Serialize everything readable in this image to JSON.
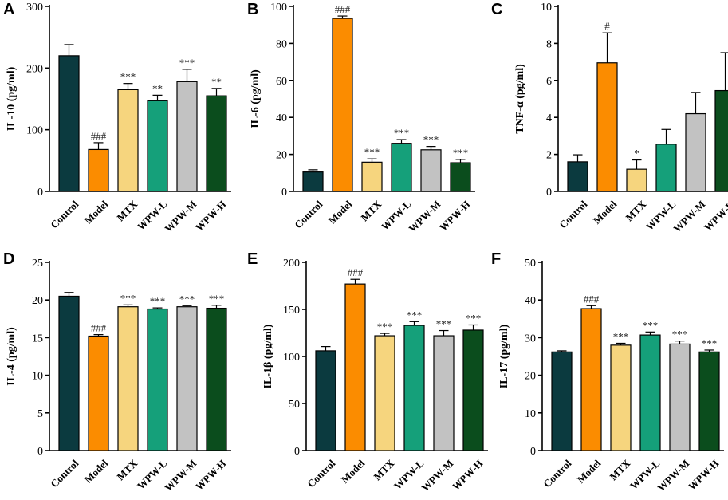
{
  "figure": {
    "colors": [
      "#0b3a3f",
      "#fb8c00",
      "#f6d57e",
      "#15a07a",
      "#c2c2c2",
      "#0b4d1d"
    ],
    "categories": [
      "Control",
      "Model",
      "MTX",
      "WPW-L",
      "WPW-M",
      "WPW-H"
    ]
  },
  "chart_data": [
    {
      "type": "bar",
      "panel": "A",
      "ylabel": "IL-10 (pg/ml)",
      "ylim": [
        0,
        300
      ],
      "yticks": [
        0,
        100,
        200,
        300
      ],
      "categories": [
        "Control",
        "Model",
        "MTX",
        "WPW-L",
        "WPW-M",
        "WPW-H"
      ],
      "values": [
        220,
        68,
        165,
        147,
        178,
        155
      ],
      "errors": [
        18,
        11,
        10,
        9,
        20,
        12
      ],
      "annotations": [
        "",
        "###",
        "***",
        "**",
        "***",
        "**"
      ]
    },
    {
      "type": "bar",
      "panel": "B",
      "ylabel": "IL-6 (pg/ml)",
      "ylim": [
        0,
        100
      ],
      "yticks": [
        0,
        20,
        40,
        60,
        80,
        100
      ],
      "categories": [
        "Control",
        "Model",
        "MTX",
        "WPW-L",
        "WPW-M",
        "WPW-H"
      ],
      "values": [
        10.5,
        93.5,
        15.8,
        26,
        22.5,
        15.5
      ],
      "errors": [
        1.2,
        1.3,
        1.8,
        2,
        1.8,
        1.8
      ],
      "annotations": [
        "",
        "###",
        "***",
        "***",
        "***",
        "***"
      ]
    },
    {
      "type": "bar",
      "panel": "C",
      "ylabel": "TNF-α (pg/ml)",
      "ylim": [
        0,
        10
      ],
      "yticks": [
        0,
        2,
        4,
        6,
        8,
        10
      ],
      "categories": [
        "Control",
        "Model",
        "MTX",
        "WPW-L",
        "WPW-M",
        "WPW-H"
      ],
      "values": [
        1.6,
        6.95,
        1.2,
        2.55,
        4.2,
        5.45
      ],
      "errors": [
        0.38,
        1.62,
        0.5,
        0.8,
        1.15,
        2.05
      ],
      "annotations": [
        "",
        "#",
        "*",
        "",
        "",
        ""
      ]
    },
    {
      "type": "bar",
      "panel": "D",
      "ylabel": "IL-4 (pg/ml)",
      "ylim": [
        0,
        25
      ],
      "yticks": [
        0,
        5,
        10,
        15,
        20,
        25
      ],
      "categories": [
        "Control",
        "Model",
        "MTX",
        "WPW-L",
        "WPW-M",
        "WPW-H"
      ],
      "values": [
        20.5,
        15.2,
        19.1,
        18.8,
        19.1,
        18.9
      ],
      "errors": [
        0.5,
        0.2,
        0.25,
        0.15,
        0.15,
        0.4
      ],
      "annotations": [
        "",
        "###",
        "***",
        "***",
        "***",
        "***"
      ]
    },
    {
      "type": "bar",
      "panel": "E",
      "ylabel": "IL-1β (pg/ml)",
      "ylim": [
        0,
        200
      ],
      "yticks": [
        0,
        50,
        100,
        150,
        200
      ],
      "categories": [
        "Control",
        "Model",
        "MTX",
        "WPW-L",
        "WPW-M",
        "WPW-H"
      ],
      "values": [
        106,
        177,
        122,
        133,
        122,
        128
      ],
      "errors": [
        4.5,
        5,
        2.5,
        4,
        5.5,
        5.5
      ],
      "annotations": [
        "",
        "###",
        "***",
        "***",
        "***",
        "***"
      ]
    },
    {
      "type": "bar",
      "panel": "F",
      "ylabel": "IL-17 (pg/ml)",
      "ylim": [
        0,
        50
      ],
      "yticks": [
        0,
        10,
        20,
        30,
        40,
        50
      ],
      "categories": [
        "Control",
        "Model",
        "MTX",
        "WPW-L",
        "WPW-M",
        "WPW-H"
      ],
      "values": [
        26.2,
        37.7,
        28,
        30.7,
        28.3,
        26.2
      ],
      "errors": [
        0.3,
        0.8,
        0.5,
        0.8,
        0.8,
        0.5
      ],
      "annotations": [
        "",
        "###",
        "***",
        "***",
        "***",
        "***"
      ]
    }
  ]
}
